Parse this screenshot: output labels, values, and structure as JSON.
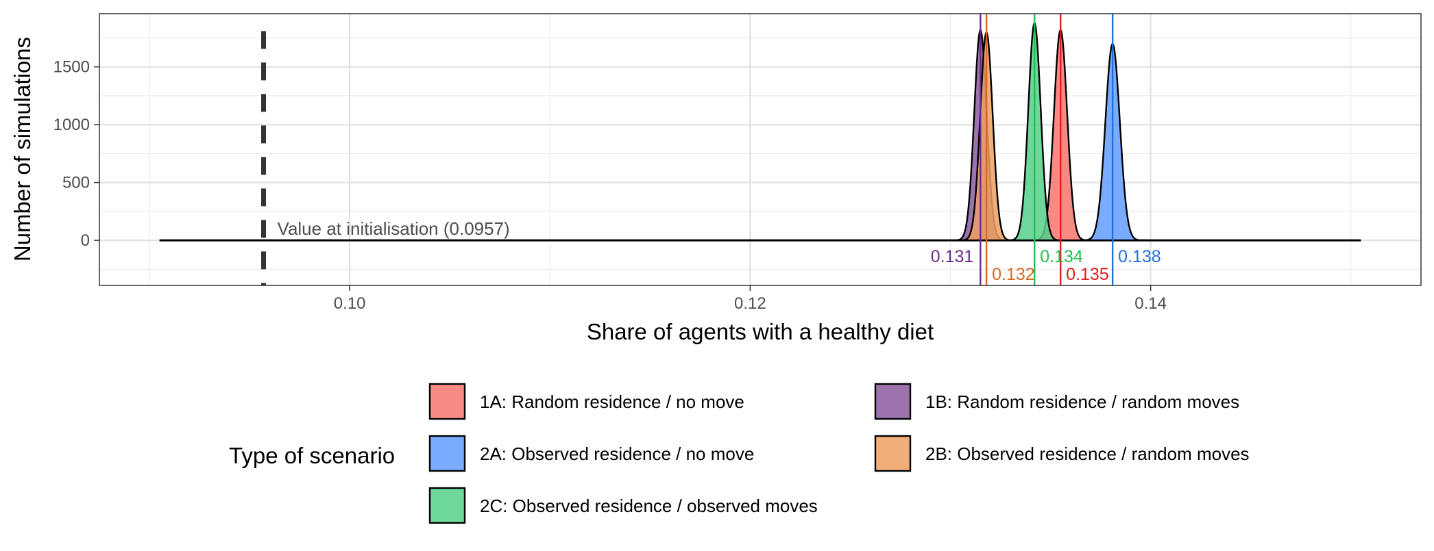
{
  "chart_data": {
    "type": "area",
    "xlabel": "Share of agents with a healthy diet",
    "ylabel": "Number of simulations",
    "xlim": [
      0.0875,
      0.1535
    ],
    "ylim": [
      -390,
      1960
    ],
    "x_ticks": [
      {
        "value": 0.1,
        "label": "0.10"
      },
      {
        "value": 0.12,
        "label": "0.12"
      },
      {
        "value": 0.14,
        "label": "0.14"
      }
    ],
    "y_ticks": [
      {
        "value": 0,
        "label": "0"
      },
      {
        "value": 500,
        "label": "500"
      },
      {
        "value": 1000,
        "label": "1000"
      },
      {
        "value": 1500,
        "label": "1500"
      }
    ],
    "grid": true,
    "baseline_range": [
      0.0905,
      0.1505
    ],
    "initial_value": {
      "x": 0.0957,
      "label": "Value at initialisation (0.0957)"
    },
    "series": [
      {
        "name": "1A: Random residence / no move",
        "fill": "#F8766D",
        "line": "#E41A1C",
        "mean": 0.1355,
        "mean_label": "0.135",
        "peak": 1820,
        "sd": 0.00033
      },
      {
        "name": "2A: Observed residence / no move",
        "fill": "#619CFF",
        "line": "#1F6FDB",
        "mean": 0.1381,
        "mean_label": "0.138",
        "peak": 1700,
        "sd": 0.00036
      },
      {
        "name": "2C: Observed residence / observed moves",
        "fill": "#55D08A",
        "line": "#1FBF4A",
        "mean": 0.1342,
        "mean_label": "0.134",
        "peak": 1880,
        "sd": 0.00031
      },
      {
        "name": "1B: Random residence / random moves",
        "fill": "#8B5A9E",
        "line": "#6A2C8A",
        "mean": 0.1315,
        "mean_label": "0.131",
        "peak": 1820,
        "sd": 0.00031
      },
      {
        "name": "2B: Observed residence / random moves",
        "fill": "#F0A060",
        "line": "#D9651F",
        "mean": 0.1318,
        "mean_label": "0.132",
        "peak": 1800,
        "sd": 0.00031
      }
    ],
    "legend": {
      "title": "Type of scenario",
      "position": "bottom"
    }
  }
}
